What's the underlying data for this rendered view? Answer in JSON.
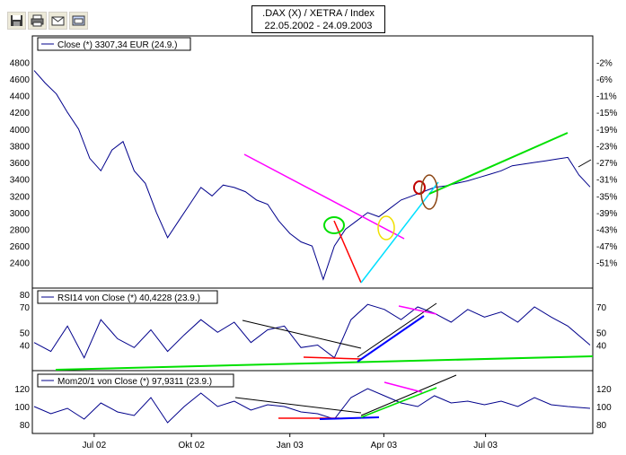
{
  "title": {
    "line1": ".DAX (X) / XETRA / Index",
    "line2": "22.05.2002 - 24.09.2003"
  },
  "toolbar": [
    {
      "name": "save-icon"
    },
    {
      "name": "print-icon"
    },
    {
      "name": "email-icon"
    },
    {
      "name": "export-icon"
    }
  ],
  "colors": {
    "series": "#00008b",
    "magenta": "#ff00ff",
    "green": "#00e000",
    "red": "#ff0000",
    "blue": "#0000ff",
    "cyan": "#00e0ff",
    "yellow": "#f0e000",
    "darkred": "#c00000",
    "brown": "#8b4513",
    "black": "#000000"
  },
  "chart_data": [
    {
      "type": "line",
      "panel": "price",
      "legend": "Close (*) 3307,34 EUR (24.9.)",
      "y_ticks_left": [
        "4800",
        "4600",
        "4400",
        "4200",
        "4000",
        "3800",
        "3600",
        "3400",
        "3200",
        "3000",
        "2800",
        "2600",
        "2400"
      ],
      "y_ticks_right": [
        "-2%",
        "-6%",
        "-11%",
        "-15%",
        "-19%",
        "-23%",
        "-27%",
        "-31%",
        "-35%",
        "-39%",
        "-43%",
        "-47%",
        "-51%"
      ],
      "ylim": [
        2150,
        4900
      ],
      "x": [
        0,
        0.02,
        0.04,
        0.06,
        0.08,
        0.1,
        0.12,
        0.14,
        0.16,
        0.18,
        0.2,
        0.22,
        0.24,
        0.26,
        0.28,
        0.3,
        0.32,
        0.34,
        0.36,
        0.38,
        0.4,
        0.42,
        0.44,
        0.46,
        0.48,
        0.5,
        0.52,
        0.54,
        0.56,
        0.58,
        0.6,
        0.62,
        0.64,
        0.66,
        0.68,
        0.7,
        0.72,
        0.74,
        0.76,
        0.78,
        0.8,
        0.82,
        0.84,
        0.86,
        0.88,
        0.9,
        0.92,
        0.94,
        0.96,
        0.98,
        1.0
      ],
      "values": [
        4700,
        4550,
        4420,
        4200,
        4000,
        3650,
        3500,
        3750,
        3850,
        3500,
        3350,
        3000,
        2700,
        2900,
        3100,
        3300,
        3200,
        3330,
        3300,
        3250,
        3150,
        3100,
        2900,
        2750,
        2650,
        2600,
        2200,
        2600,
        2800,
        2900,
        3000,
        2950,
        3050,
        3150,
        3200,
        3250,
        3300,
        3320,
        3350,
        3380,
        3420,
        3460,
        3500,
        3560,
        3580,
        3600,
        3620,
        3640,
        3660,
        3450,
        3307
      ]
    },
    {
      "type": "line",
      "panel": "rsi",
      "legend": "RSI14 von Close (*) 40,4228 (23.9.)",
      "y_ticks_left": [
        "80",
        "70",
        "50",
        "40"
      ],
      "y_ticks_right": [
        "70",
        "50",
        "40"
      ],
      "ylim": [
        22,
        82
      ],
      "x": [
        0,
        0.03,
        0.06,
        0.09,
        0.12,
        0.15,
        0.18,
        0.21,
        0.24,
        0.27,
        0.3,
        0.33,
        0.36,
        0.39,
        0.42,
        0.45,
        0.48,
        0.51,
        0.54,
        0.57,
        0.6,
        0.63,
        0.66,
        0.69,
        0.72,
        0.75,
        0.78,
        0.81,
        0.84,
        0.87,
        0.9,
        0.93,
        0.96,
        1.0
      ],
      "values": [
        42,
        35,
        55,
        30,
        60,
        45,
        38,
        52,
        35,
        48,
        60,
        50,
        58,
        42,
        52,
        55,
        38,
        40,
        30,
        60,
        72,
        68,
        60,
        70,
        65,
        58,
        68,
        62,
        66,
        58,
        70,
        62,
        55,
        40
      ]
    },
    {
      "type": "line",
      "panel": "momentum",
      "legend": "Mom20/1 von Close (*) 97,9311 (23.9.)",
      "y_ticks_left": [
        "120",
        "100",
        "80"
      ],
      "y_ticks_right": [
        "120",
        "100",
        "80"
      ],
      "ylim": [
        72,
        132
      ],
      "x": [
        0,
        0.03,
        0.06,
        0.09,
        0.12,
        0.15,
        0.18,
        0.21,
        0.24,
        0.27,
        0.3,
        0.33,
        0.36,
        0.39,
        0.42,
        0.45,
        0.48,
        0.51,
        0.54,
        0.57,
        0.6,
        0.63,
        0.66,
        0.69,
        0.72,
        0.75,
        0.78,
        0.81,
        0.84,
        0.87,
        0.9,
        0.93,
        0.96,
        1.0
      ],
      "values": [
        100,
        92,
        98,
        86,
        104,
        94,
        90,
        110,
        82,
        100,
        115,
        100,
        106,
        96,
        102,
        100,
        94,
        92,
        86,
        110,
        120,
        112,
        104,
        100,
        112,
        104,
        106,
        102,
        106,
        100,
        110,
        102,
        100,
        98
      ]
    }
  ],
  "x_axis_labels": [
    "Jul 02",
    "Okt 02",
    "Jan 03",
    "Apr 03",
    "Jul 03"
  ]
}
